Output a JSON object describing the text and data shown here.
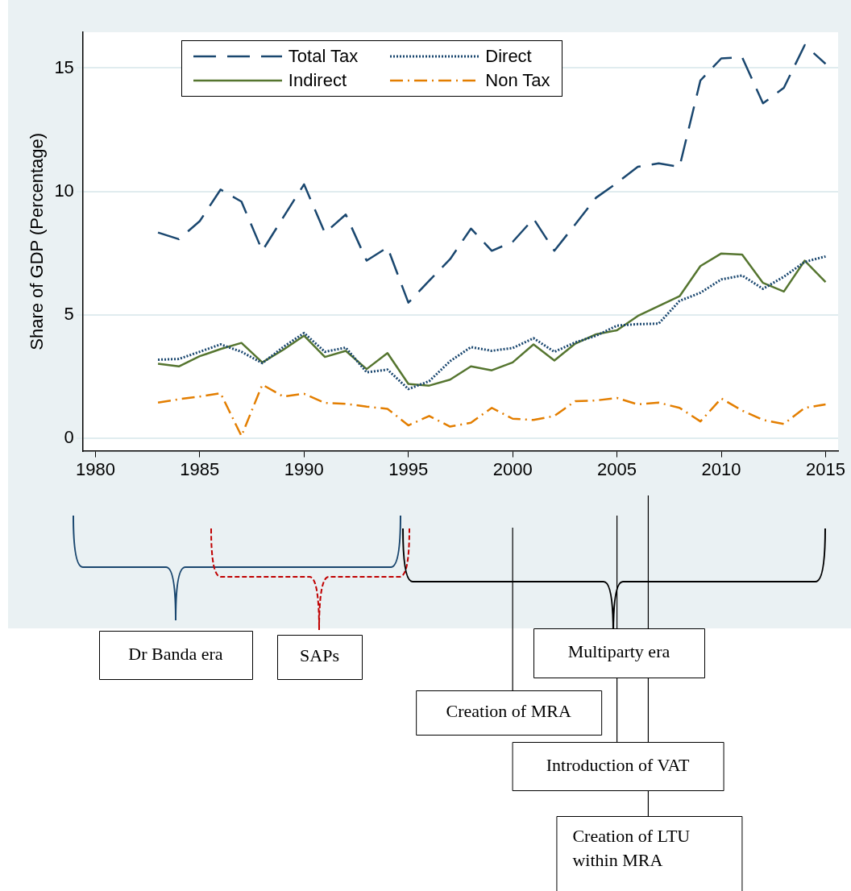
{
  "chart_data": {
    "type": "line",
    "ylabel": "Share of GDP (Percentage)",
    "x": [
      1983,
      1984,
      1985,
      1986,
      1987,
      1988,
      1989,
      1990,
      1991,
      1992,
      1993,
      1994,
      1995,
      1996,
      1997,
      1998,
      1999,
      2000,
      2001,
      2002,
      2003,
      2004,
      2005,
      2006,
      2007,
      2008,
      2009,
      2010,
      2011,
      2012,
      2013,
      2014,
      2015
    ],
    "series": [
      {
        "name": "Total Tax",
        "color": "#1a476f",
        "line_style": "dashed",
        "values": [
          8.34,
          8.07,
          8.8,
          10.08,
          9.59,
          7.6,
          8.95,
          10.29,
          8.32,
          9.07,
          7.2,
          7.74,
          5.5,
          6.39,
          7.26,
          8.5,
          7.6,
          7.96,
          8.9,
          7.6,
          8.67,
          9.75,
          10.35,
          11.0,
          11.14,
          11.0,
          14.5,
          15.39,
          15.44,
          13.57,
          14.2,
          15.93,
          15.17
        ]
      },
      {
        "name": "Direct",
        "color": "#1a476f",
        "line_style": "dotted",
        "values": [
          3.19,
          3.22,
          3.51,
          3.81,
          3.51,
          3.05,
          3.7,
          4.27,
          3.51,
          3.68,
          2.68,
          2.79,
          2.0,
          2.32,
          3.13,
          3.7,
          3.55,
          3.66,
          4.06,
          3.51,
          3.89,
          4.16,
          4.57,
          4.63,
          4.65,
          5.57,
          5.9,
          6.44,
          6.6,
          6.06,
          6.55,
          7.15,
          7.37
        ]
      },
      {
        "name": "Indirect",
        "color": "#55752f",
        "line_style": "solid",
        "values": [
          3.03,
          2.92,
          3.33,
          3.62,
          3.87,
          3.08,
          3.59,
          4.16,
          3.3,
          3.55,
          2.81,
          3.46,
          2.21,
          2.14,
          2.38,
          2.92,
          2.76,
          3.08,
          3.81,
          3.16,
          3.84,
          4.22,
          4.38,
          4.96,
          5.36,
          5.76,
          6.98,
          7.49,
          7.45,
          6.3,
          5.95,
          7.2,
          6.33
        ]
      },
      {
        "name": "Non Tax",
        "color": "#e37e00",
        "line_style": "dashdot",
        "values": [
          1.45,
          1.59,
          1.7,
          1.83,
          0.1,
          2.18,
          1.7,
          1.81,
          1.44,
          1.4,
          1.29,
          1.2,
          0.53,
          0.91,
          0.48,
          0.64,
          1.24,
          0.8,
          0.75,
          0.91,
          1.51,
          1.54,
          1.64,
          1.38,
          1.45,
          1.24,
          0.69,
          1.62,
          1.13,
          0.75,
          0.59,
          1.24,
          1.38
        ]
      }
    ],
    "xlim": [
      1979.4,
      2015.6
    ],
    "ylim": [
      -0.5,
      16.45
    ],
    "xticks": [
      1980,
      1985,
      1990,
      1995,
      2000,
      2005,
      2010,
      2015
    ],
    "yticks": [
      0,
      5,
      10,
      15
    ],
    "grid": "y",
    "legend": "top left",
    "marker": "none",
    "annotations": [
      "Dr Banda era",
      "SAPs",
      "Multiparty era"
    ],
    "ref_lines": [
      {
        "axis": "x",
        "value": 2000,
        "label": "Creation of MRA",
        "color": "#000000"
      },
      {
        "axis": "x",
        "value": 2005,
        "label": "Introduction of VAT",
        "color": "#000000"
      },
      {
        "axis": "x",
        "value": 2006.5,
        "label": "Creation of LTU\nwithin MRA",
        "color": "#000000"
      }
    ]
  }
}
